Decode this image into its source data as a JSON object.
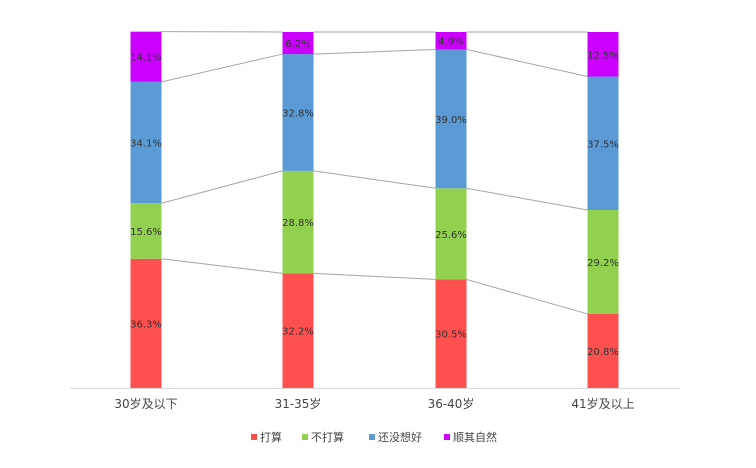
{
  "chart_data": {
    "type": "bar",
    "stacked": true,
    "percent_stacked": true,
    "categories": [
      "30岁及以下",
      "31-35岁",
      "36-40岁",
      "41岁及以上"
    ],
    "series": [
      {
        "name": "打算",
        "color": "#FF5050",
        "values": [
          36.3,
          32.2,
          30.5,
          20.8
        ],
        "labels": [
          "36.3%",
          "32.2%",
          "30.5%",
          "20.8%"
        ]
      },
      {
        "name": "不打算",
        "color": "#92D050",
        "values": [
          15.6,
          28.8,
          25.6,
          29.2
        ],
        "labels": [
          "15.6%",
          "28.8%",
          "25.6%",
          "29.2%"
        ]
      },
      {
        "name": "还没想好",
        "color": "#5B9BD5",
        "values": [
          34.1,
          32.8,
          39.0,
          37.5
        ],
        "labels": [
          "34.1%",
          "32.8%",
          "39.0%",
          "37.5%"
        ]
      },
      {
        "name": "顺其自然",
        "color": "#CC00FF",
        "values": [
          14.1,
          6.2,
          4.9,
          12.5
        ],
        "labels": [
          "14.1%",
          "6.2%",
          "4.9%",
          "12.5%"
        ]
      }
    ],
    "ylim": [
      0,
      100
    ],
    "series_lines": true,
    "grid": false,
    "legend_position": "bottom"
  }
}
